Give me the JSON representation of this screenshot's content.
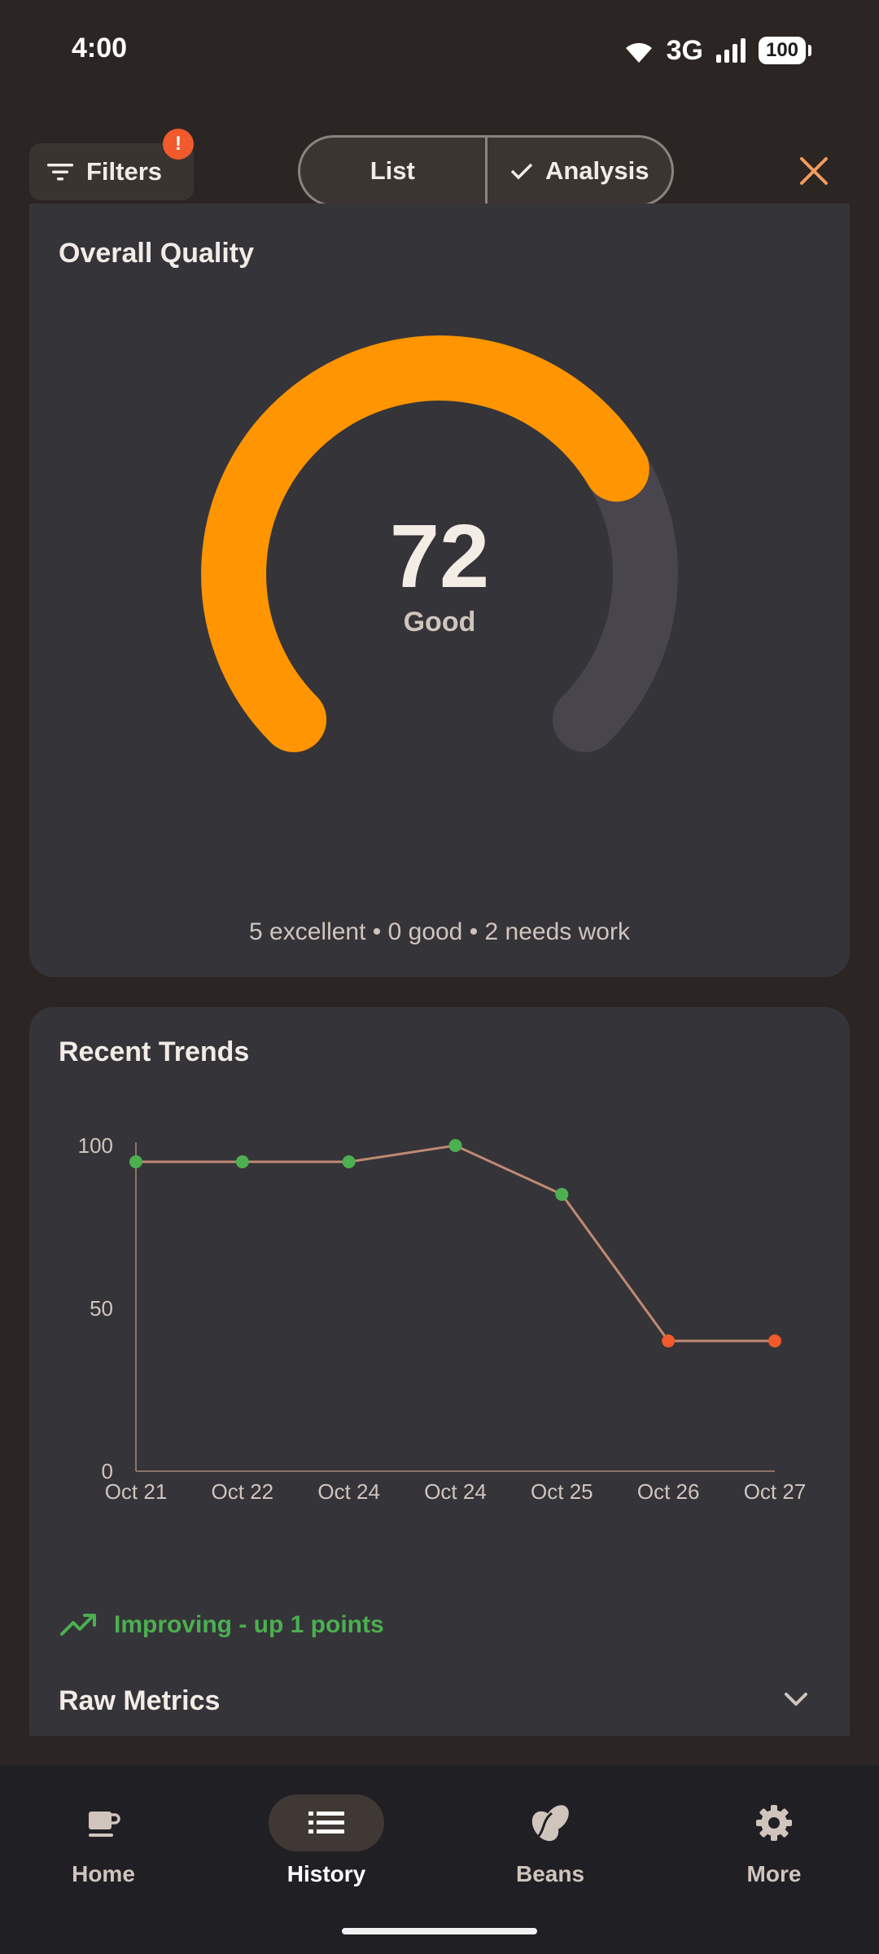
{
  "status_bar": {
    "time": "4:00",
    "network": "3G",
    "battery": "100"
  },
  "topbar": {
    "filters_label": "Filters",
    "filters_badge": "!",
    "segments": [
      {
        "label": "List"
      },
      {
        "label": "Analysis",
        "selected": true
      }
    ],
    "close_icon": "close-icon"
  },
  "quality": {
    "title": "Overall Quality",
    "score": "72",
    "rating": "Good",
    "gauge_fraction": 0.72,
    "summary": "5 excellent • 0 good • 2 needs work",
    "colors": {
      "fill": "#ff9500",
      "track": "#48454d"
    }
  },
  "trends": {
    "title": "Recent Trends",
    "trend_text": "Improving - up 1 points",
    "raw_metrics_label": "Raw Metrics"
  },
  "chart_data": {
    "type": "line",
    "x": [
      "Oct 21",
      "Oct 22",
      "Oct 24",
      "Oct 24",
      "Oct 25",
      "Oct 26",
      "Oct 27"
    ],
    "series": [
      {
        "values": [
          95,
          95,
          95,
          100,
          85,
          40,
          40
        ]
      }
    ],
    "point_colors": [
      "#4caf50",
      "#4caf50",
      "#4caf50",
      "#4caf50",
      "#4caf50",
      "#f05a2c",
      "#f05a2c"
    ],
    "line_color": "#c08a72",
    "ylim": [
      0,
      100
    ],
    "yticks": [
      "0",
      "50",
      "100"
    ],
    "grid": false
  },
  "nav": {
    "items": [
      {
        "label": "Home",
        "icon": "coffee-cup-icon"
      },
      {
        "label": "History",
        "icon": "list-icon",
        "active": true
      },
      {
        "label": "Beans",
        "icon": "coffee-bean-icon"
      },
      {
        "label": "More",
        "icon": "gear-icon"
      }
    ]
  }
}
